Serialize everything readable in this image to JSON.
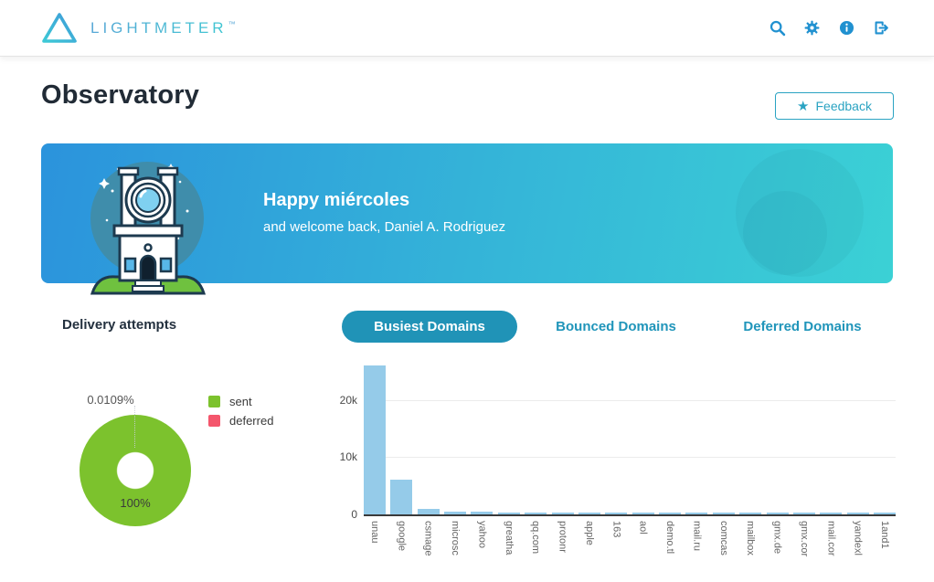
{
  "colors": {
    "accent_blue": "#2191d0",
    "tab_teal": "#2093b7",
    "feedback_teal": "#2aa3c2",
    "banner_gradient": [
      "#2b93dc",
      "#3bd1d5"
    ],
    "donut_green": "#7cc22d",
    "deferred_pink": "#f4566c",
    "bar_blue": "#95cbe9"
  },
  "header": {
    "brand": "LIGHTMETER",
    "brand_tm": "™",
    "icons": [
      "search-icon",
      "settings-icon",
      "info-icon",
      "logout-icon"
    ]
  },
  "page": {
    "title": "Observatory"
  },
  "feedback": {
    "label": "Feedback",
    "icon": "star-icon",
    "star_glyph": "★"
  },
  "banner": {
    "greeting": "Happy miércoles",
    "subtext": "and welcome back, Daniel A. Rodriguez"
  },
  "delivery": {
    "heading": "Delivery attempts",
    "legend": [
      {
        "label": "sent",
        "color": "#7cc22d"
      },
      {
        "label": "deferred",
        "color": "#f4566c"
      }
    ],
    "donut": {
      "callout_label": "0.0109%",
      "inside_label": "100%",
      "color": "#7cc22d",
      "hole_color": "#ffffff"
    }
  },
  "tabs": [
    {
      "label": "Busiest Domains",
      "active": true
    },
    {
      "label": "Bounced Domains",
      "active": false
    },
    {
      "label": "Deferred Domains",
      "active": false
    }
  ],
  "chart_data": [
    {
      "type": "pie",
      "title": "Delivery attempts",
      "donut": true,
      "labels": [
        "sent",
        "deferred"
      ],
      "values": [
        99.9891,
        0.0109
      ],
      "unit": "%",
      "colors": [
        "#7cc22d",
        "#f4566c"
      ],
      "annotations": [
        "0.0109%",
        "100%"
      ],
      "legend_position": "right"
    },
    {
      "type": "bar",
      "title": "Busiest Domains",
      "categories": [
        "unau",
        "google",
        "csmage",
        "microsc",
        "yahoo",
        "greatha",
        "qq.com",
        "protonr",
        "apple",
        "163",
        "aol",
        "demo.tl",
        "mail.ru",
        "comcas",
        "mailbox",
        "gmx.de",
        "gmx.cor",
        "mail.cor",
        "yandexl",
        "1and1"
      ],
      "values": [
        26000,
        6000,
        1000,
        550,
        450,
        200,
        200,
        250,
        250,
        200,
        200,
        250,
        250,
        250,
        200,
        250,
        250,
        250,
        250,
        250
      ],
      "xlabel": "",
      "ylabel": "",
      "ylim": [
        0,
        26000
      ],
      "yticks": [
        {
          "label": "0",
          "value": 0
        },
        {
          "label": "10k",
          "value": 10000
        },
        {
          "label": "20k",
          "value": 20000
        }
      ],
      "bar_color": "#95cbe9",
      "grid": true,
      "legend_position": "none"
    }
  ]
}
